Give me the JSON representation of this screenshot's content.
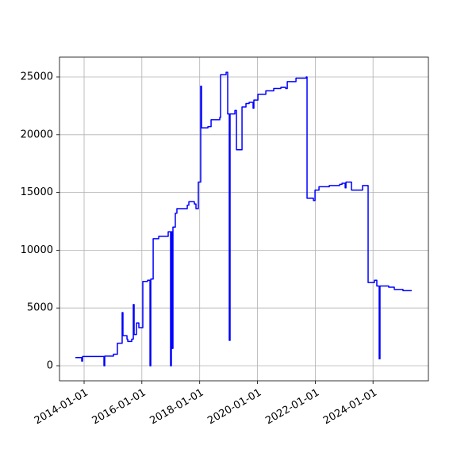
{
  "chart_data": {
    "type": "line",
    "drawstyle": "steps-post",
    "grid": true,
    "x": [
      "2013-09-13",
      "2013-12-02",
      "2013-12-12",
      "2014-09-09",
      "2014-09-19",
      "2015-01-07",
      "2015-02-26",
      "2015-04-27",
      "2015-05-07",
      "2015-06-27",
      "2015-07-07",
      "2015-08-26",
      "2015-09-15",
      "2015-09-25",
      "2015-10-25",
      "2015-11-24",
      "2016-01-13",
      "2016-03-13",
      "2016-04-13",
      "2016-04-23",
      "2016-05-23",
      "2016-08-01",
      "2016-11-29",
      "2016-12-29",
      "2017-01-08",
      "2017-01-18",
      "2017-01-28",
      "2017-02-27",
      "2017-03-19",
      "2017-07-28",
      "2017-08-17",
      "2017-10-26",
      "2017-11-15",
      "2017-12-15",
      "2018-01-14",
      "2018-01-24",
      "2018-04-15",
      "2018-05-25",
      "2018-09-12",
      "2018-09-22",
      "2018-12-01",
      "2018-12-21",
      "2019-01-10",
      "2019-01-20",
      "2019-03-22",
      "2019-04-11",
      "2019-06-20",
      "2019-08-09",
      "2019-09-18",
      "2019-11-07",
      "2019-11-17",
      "2020-01-07",
      "2020-04-16",
      "2020-07-25",
      "2020-10-23",
      "2020-12-23",
      "2021-01-12",
      "2021-05-02",
      "2021-09-09",
      "2021-09-19",
      "2021-12-09",
      "2021-12-29",
      "2022-02-17",
      "2022-06-27",
      "2022-11-05",
      "2022-12-05",
      "2023-01-14",
      "2023-01-24",
      "2023-04-04",
      "2023-08-22",
      "2023-10-31",
      "2024-01-19",
      "2024-02-18",
      "2024-03-19",
      "2024-03-29",
      "2024-07-17",
      "2024-09-26",
      "2025-01-14",
      "2025-05-04"
    ],
    "series": [
      {
        "color": "#0000ff",
        "values": [
          700,
          400,
          800,
          0,
          830,
          1000,
          1950,
          4600,
          2600,
          2300,
          2100,
          2300,
          5300,
          2700,
          3700,
          3300,
          7300,
          7400,
          0,
          7500,
          11000,
          11200,
          11600,
          0,
          11600,
          1500,
          12000,
          13200,
          13600,
          13900,
          14200,
          14000,
          13600,
          15900,
          24200,
          20600,
          20700,
          21300,
          21500,
          25200,
          25400,
          21800,
          2200,
          21800,
          22100,
          18700,
          22400,
          22700,
          22800,
          22300,
          23000,
          23500,
          23800,
          24000,
          24100,
          24000,
          24600,
          24900,
          25000,
          14500,
          14300,
          15200,
          15500,
          15600,
          15700,
          15800,
          15400,
          15900,
          15200,
          15600,
          7200,
          7400,
          6900,
          600,
          6900,
          6800,
          6600,
          6500,
          6500
        ]
      }
    ],
    "xlim": [
      "2013-02-24",
      "2025-12-01"
    ],
    "xticks": [
      "2014-01-01",
      "2016-01-01",
      "2018-01-01",
      "2020-01-01",
      "2022-01-01",
      "2024-01-01"
    ],
    "ylim": [
      -1305,
      26717
    ],
    "yticks": [
      0,
      5000,
      10000,
      15000,
      20000,
      25000
    ]
  }
}
